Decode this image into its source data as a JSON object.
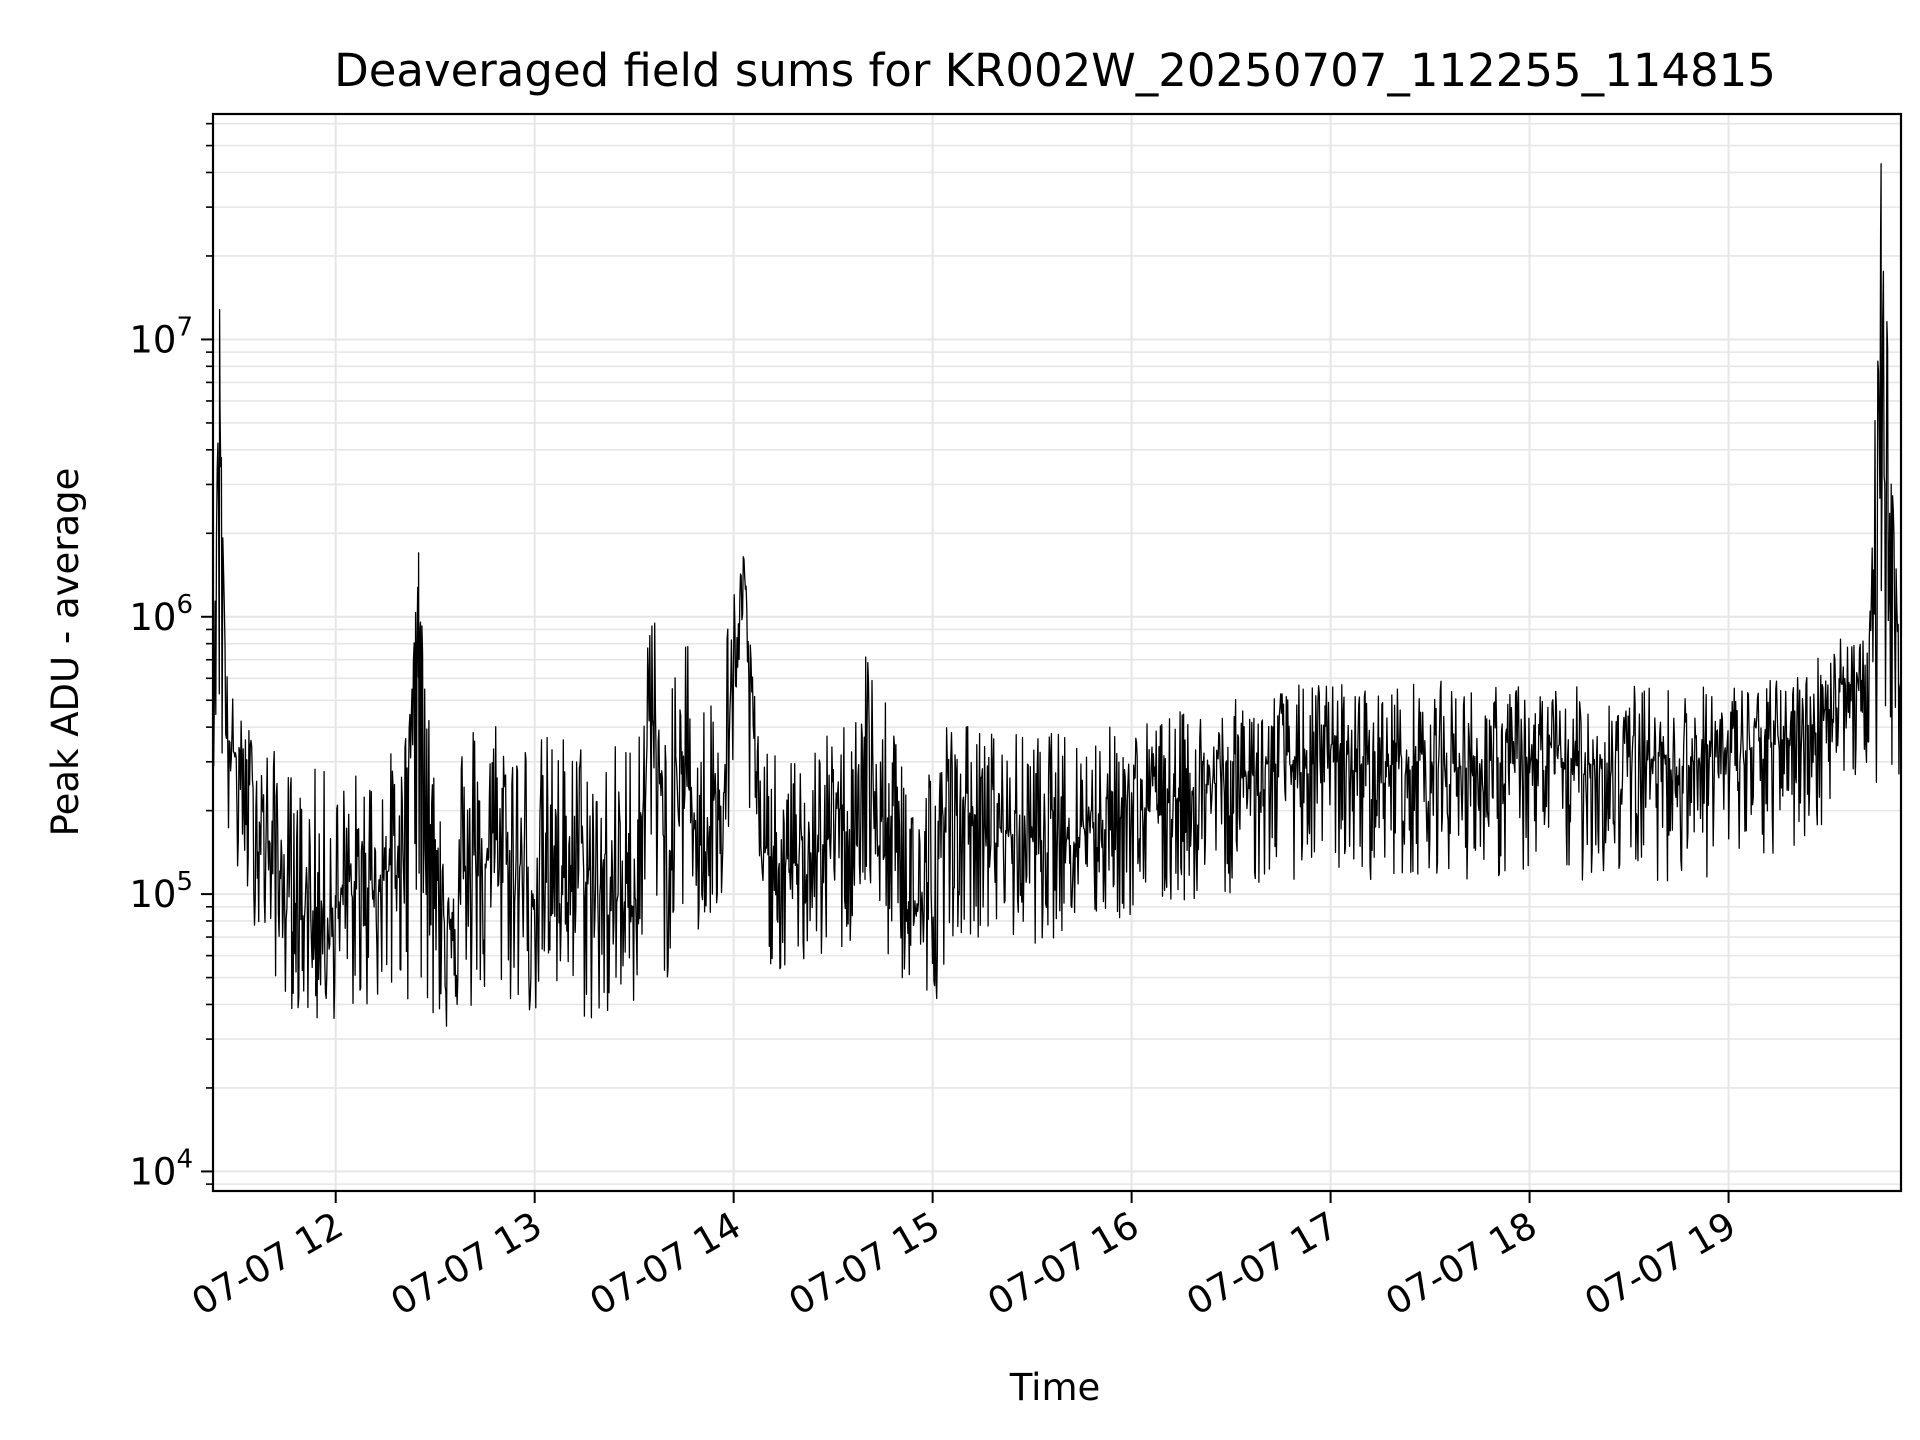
{
  "chart_data": {
    "type": "line",
    "title": "Deaveraged field sums for KR002W_20250707_112255_114815",
    "xlabel": "Time",
    "ylabel": "Peak ADU - average",
    "yscale": "log",
    "ylim": [
      8500,
      65000000
    ],
    "xlim": [
      "2025-07-07 11:23",
      "2025-07-07 19:52"
    ],
    "grid": true,
    "line_color": "#000000",
    "grid_color": "#e6e6e6",
    "x_ticks": [
      {
        "value": "2025-07-07 12:00",
        "label": "07-07 12"
      },
      {
        "value": "2025-07-07 13:00",
        "label": "07-07 13"
      },
      {
        "value": "2025-07-07 14:00",
        "label": "07-07 14"
      },
      {
        "value": "2025-07-07 15:00",
        "label": "07-07 15"
      },
      {
        "value": "2025-07-07 16:00",
        "label": "07-07 16"
      },
      {
        "value": "2025-07-07 17:00",
        "label": "07-07 17"
      },
      {
        "value": "2025-07-07 18:00",
        "label": "07-07 18"
      },
      {
        "value": "2025-07-07 19:00",
        "label": "07-07 19"
      }
    ],
    "y_ticks": [
      {
        "value": 10000,
        "base": "10",
        "exp": "4"
      },
      {
        "value": 100000,
        "base": "10",
        "exp": "5"
      },
      {
        "value": 1000000,
        "base": "10",
        "exp": "6"
      },
      {
        "value": 10000000,
        "base": "10",
        "exp": "7"
      }
    ],
    "series": [
      {
        "x": [
          "2025-07-07 11:23",
          "2025-07-07 11:25",
          "2025-07-07 11:27",
          "2025-07-07 11:30",
          "2025-07-07 11:35",
          "2025-07-07 11:40",
          "2025-07-07 11:45",
          "2025-07-07 11:50",
          "2025-07-07 11:55",
          "2025-07-07 12:00",
          "2025-07-07 12:10",
          "2025-07-07 12:20",
          "2025-07-07 12:25",
          "2025-07-07 12:30",
          "2025-07-07 12:40",
          "2025-07-07 12:50",
          "2025-07-07 13:00",
          "2025-07-07 13:10",
          "2025-07-07 13:20",
          "2025-07-07 13:30",
          "2025-07-07 13:35",
          "2025-07-07 13:40",
          "2025-07-07 13:45",
          "2025-07-07 13:50",
          "2025-07-07 13:55",
          "2025-07-07 14:00",
          "2025-07-07 14:03",
          "2025-07-07 14:05",
          "2025-07-07 14:08",
          "2025-07-07 14:15",
          "2025-07-07 14:25",
          "2025-07-07 14:35",
          "2025-07-07 14:40",
          "2025-07-07 14:45",
          "2025-07-07 14:55",
          "2025-07-07 15:00",
          "2025-07-07 15:05",
          "2025-07-07 15:15",
          "2025-07-07 15:30",
          "2025-07-07 15:45",
          "2025-07-07 16:00",
          "2025-07-07 16:15",
          "2025-07-07 16:30",
          "2025-07-07 16:45",
          "2025-07-07 17:00",
          "2025-07-07 17:15",
          "2025-07-07 17:30",
          "2025-07-07 17:45",
          "2025-07-07 18:00",
          "2025-07-07 18:15",
          "2025-07-07 18:30",
          "2025-07-07 18:45",
          "2025-07-07 19:00",
          "2025-07-07 19:15",
          "2025-07-07 19:25",
          "2025-07-07 19:35",
          "2025-07-07 19:42",
          "2025-07-07 19:46",
          "2025-07-07 19:52"
        ],
        "y": [
          600000,
          12800000,
          400000,
          300000,
          220000,
          150000,
          100000,
          90000,
          80000,
          90000,
          110000,
          130000,
          1700000,
          80000,
          110000,
          150000,
          100000,
          130000,
          100000,
          90000,
          500000,
          120000,
          300000,
          150000,
          200000,
          600000,
          1650000,
          600000,
          150000,
          120000,
          140000,
          200000,
          300000,
          150000,
          90000,
          80000,
          220000,
          180000,
          160000,
          180000,
          200000,
          230000,
          260000,
          290000,
          300000,
          290000,
          300000,
          280000,
          300000,
          290000,
          310000,
          300000,
          320000,
          350000,
          400000,
          600000,
          500000,
          43000000,
          500000
        ],
        "envelope_upper": [
          900000,
          1500000,
          700000,
          450000,
          400000,
          350000,
          300000,
          250000,
          300000,
          260000,
          300000,
          350000,
          600000,
          400000,
          450000,
          500000,
          380000,
          400000,
          350000,
          400000,
          1400000,
          400000,
          1200000,
          500000,
          700000,
          1300000,
          1700000,
          900000,
          350000,
          300000,
          350000,
          450000,
          900000,
          500000,
          400000,
          350000,
          450000,
          400000,
          380000,
          400000,
          420000,
          460000,
          500000,
          560000,
          600000,
          560000,
          600000,
          560000,
          580000,
          560000,
          580000,
          560000,
          580000,
          600000,
          700000,
          950000,
          850000,
          850000,
          800000
        ],
        "envelope_lower": [
          300000,
          200000,
          150000,
          100000,
          80000,
          55000,
          40000,
          35000,
          32000,
          35000,
          38000,
          40000,
          45000,
          30000,
          35000,
          40000,
          35000,
          38000,
          30000,
          40000,
          100000,
          45000,
          90000,
          60000,
          70000,
          150000,
          200000,
          150000,
          60000,
          50000,
          55000,
          60000,
          90000,
          60000,
          40000,
          35000,
          70000,
          70000,
          65000,
          75000,
          80000,
          90000,
          100000,
          110000,
          120000,
          110000,
          120000,
          110000,
          115000,
          110000,
          115000,
          110000,
          115000,
          130000,
          150000,
          250000,
          250000,
          250000,
          250000
        ]
      }
    ]
  }
}
